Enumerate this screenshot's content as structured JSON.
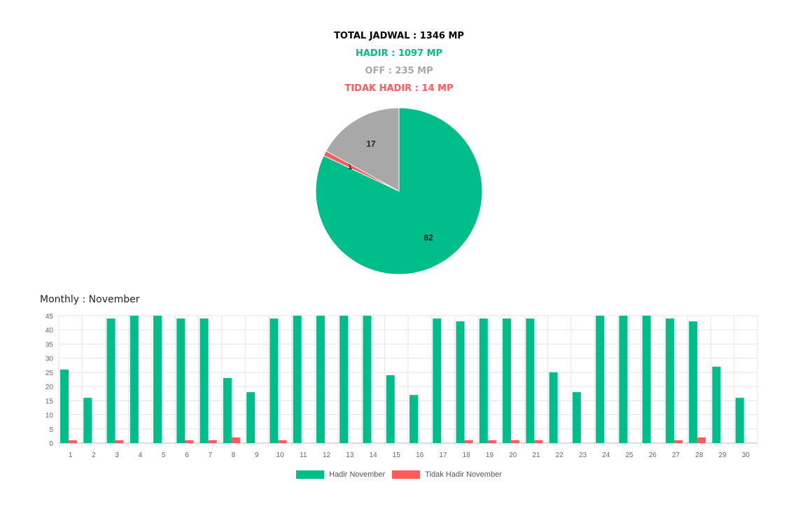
{
  "summary": {
    "total": "TOTAL JADWAL : 1346 MP",
    "hadir": "HADIR : 1097 MP",
    "off": "OFF : 235 MP",
    "tidak_hadir": "TIDAK HADIR : 14 MP"
  },
  "colors": {
    "hadir": "#00BD8A",
    "off": "#A8A8A8",
    "tidak_hadir": "#FF5B5B",
    "text": "#000000",
    "grid": "#E5E5E5"
  },
  "monthly_title": "Monthly : November",
  "chart_data": [
    {
      "type": "pie",
      "labels": [
        "82",
        "1",
        "17"
      ],
      "values": [
        82,
        1,
        17
      ],
      "slice_colors": [
        "#00BD8A",
        "#FF5B5B",
        "#A8A8A8"
      ],
      "start": "12 o'clock",
      "direction": "clockwise"
    },
    {
      "type": "bar",
      "title": "",
      "xlabel": "",
      "ylabel": "",
      "categories": [
        "1",
        "2",
        "3",
        "4",
        "5",
        "6",
        "7",
        "8",
        "9",
        "10",
        "11",
        "12",
        "13",
        "14",
        "15",
        "16",
        "17",
        "18",
        "19",
        "20",
        "21",
        "22",
        "23",
        "24",
        "25",
        "26",
        "27",
        "28",
        "29",
        "30"
      ],
      "series": [
        {
          "name": "Hadir November",
          "color": "#00BD8A",
          "values": [
            26,
            16,
            44,
            45,
            45,
            44,
            44,
            23,
            18,
            44,
            45,
            45,
            45,
            45,
            24,
            17,
            44,
            43,
            44,
            44,
            44,
            25,
            18,
            45,
            45,
            45,
            44,
            43,
            27,
            16
          ]
        },
        {
          "name": "Tidak Hadir November",
          "color": "#FF5B5B",
          "values": [
            1,
            0,
            1,
            0,
            0,
            1,
            1,
            2,
            0,
            1,
            0,
            0,
            0,
            0,
            0,
            0,
            0,
            1,
            1,
            1,
            1,
            0,
            0,
            0,
            0,
            0,
            1,
            2,
            0,
            0
          ]
        }
      ],
      "yticks": [
        0,
        5,
        10,
        15,
        20,
        25,
        30,
        35,
        40,
        45
      ],
      "ylim": [
        0,
        45
      ],
      "grid": true,
      "legend": "bottom"
    }
  ]
}
